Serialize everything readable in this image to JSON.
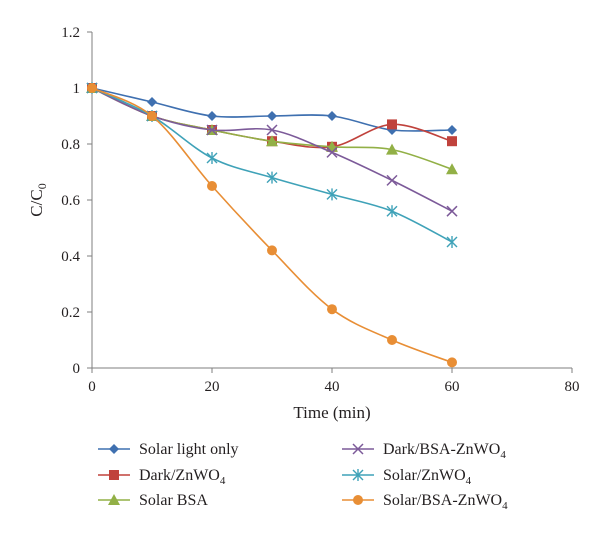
{
  "chart_data": {
    "type": "line",
    "title": "",
    "xlabel": "Time (min)",
    "ylabel": {
      "main": "C/C",
      "sub": "0"
    },
    "xlim": [
      0,
      80
    ],
    "ylim": [
      0,
      1.2
    ],
    "x_ticks": [
      "0",
      "20",
      "40",
      "60",
      "80"
    ],
    "y_ticks": [
      "0",
      "0.2",
      "0.4",
      "0.6",
      "0.8",
      "1",
      "1.2"
    ],
    "grid": false,
    "smoothed": true,
    "legend_position": "bottom",
    "x": [
      0,
      10,
      20,
      30,
      40,
      50,
      60
    ],
    "series": [
      {
        "name": "Solar light only",
        "name_main": "Solar light only",
        "name_sub": "",
        "name_suffix": "",
        "marker": "diamond",
        "color": "#3f70b0",
        "values": [
          1.0,
          0.95,
          0.9,
          0.9,
          0.9,
          0.85,
          0.85
        ]
      },
      {
        "name": "Dark/ZnWO4",
        "name_main": "Dark/ZnWO",
        "name_sub": "4",
        "name_suffix": "",
        "marker": "square",
        "color": "#c0423c",
        "values": [
          1.0,
          0.9,
          0.85,
          0.81,
          0.79,
          0.87,
          0.81
        ]
      },
      {
        "name": "Solar BSA",
        "name_main": "Solar BSA",
        "name_sub": "",
        "name_suffix": "",
        "marker": "triangle",
        "color": "#92b046",
        "values": [
          1.0,
          0.9,
          0.85,
          0.81,
          0.79,
          0.78,
          0.71
        ]
      },
      {
        "name": "Dark/BSA-ZnWO4",
        "name_main": "Dark/BSA-ZnWO",
        "name_sub": "4",
        "name_suffix": "",
        "marker": "x",
        "color": "#7c5a99",
        "values": [
          1.0,
          0.9,
          0.85,
          0.85,
          0.77,
          0.67,
          0.56
        ]
      },
      {
        "name": "Solar/ZnWO4",
        "name_main": "Solar/ZnWO",
        "name_sub": "4",
        "name_suffix": "",
        "marker": "asterisk",
        "color": "#3fa2b8",
        "values": [
          1.0,
          0.9,
          0.75,
          0.68,
          0.62,
          0.56,
          0.45
        ]
      },
      {
        "name": "Solar/BSA-ZnWO4",
        "name_main": "Solar/BSA-ZnWO",
        "name_sub": "4",
        "name_suffix": "",
        "marker": "circle",
        "color": "#e88e35",
        "values": [
          1.0,
          0.9,
          0.65,
          0.42,
          0.21,
          0.1,
          0.02
        ]
      }
    ]
  }
}
